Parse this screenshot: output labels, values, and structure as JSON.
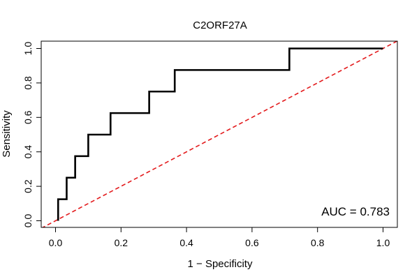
{
  "chart_data": {
    "type": "line",
    "title": "C2ORF27A",
    "xlabel": "1 − Specificity",
    "ylabel": "Sensitivity",
    "xlim": [
      0,
      1
    ],
    "ylim": [
      0,
      1
    ],
    "x_ticks": [
      0.0,
      0.2,
      0.4,
      0.6,
      0.8,
      1.0
    ],
    "x_tick_labels": [
      "0.0",
      "0.2",
      "0.4",
      "0.6",
      "0.8",
      "1.0"
    ],
    "y_ticks": [
      0.0,
      0.2,
      0.4,
      0.6,
      0.8,
      1.0
    ],
    "y_tick_labels": [
      "0.0",
      "0.2",
      "0.4",
      "0.6",
      "0.8",
      "1.0"
    ],
    "grid": false,
    "annotation": "AUC = 0.783",
    "colors": {
      "roc": "#000000",
      "reference": "#e31a1c"
    },
    "series": [
      {
        "name": "ROC",
        "style": "solid",
        "points": [
          [
            0.008,
            0.0
          ],
          [
            0.008,
            0.125
          ],
          [
            0.034,
            0.125
          ],
          [
            0.034,
            0.25
          ],
          [
            0.06,
            0.25
          ],
          [
            0.06,
            0.375
          ],
          [
            0.1,
            0.375
          ],
          [
            0.1,
            0.5
          ],
          [
            0.168,
            0.5
          ],
          [
            0.168,
            0.625
          ],
          [
            0.286,
            0.625
          ],
          [
            0.286,
            0.75
          ],
          [
            0.364,
            0.75
          ],
          [
            0.364,
            0.875
          ],
          [
            0.714,
            0.875
          ],
          [
            0.714,
            1.0
          ],
          [
            1.0,
            1.0
          ]
        ]
      },
      {
        "name": "Reference",
        "style": "dashed",
        "points": [
          [
            0.0,
            0.0
          ],
          [
            1.0,
            1.0
          ]
        ]
      }
    ]
  }
}
